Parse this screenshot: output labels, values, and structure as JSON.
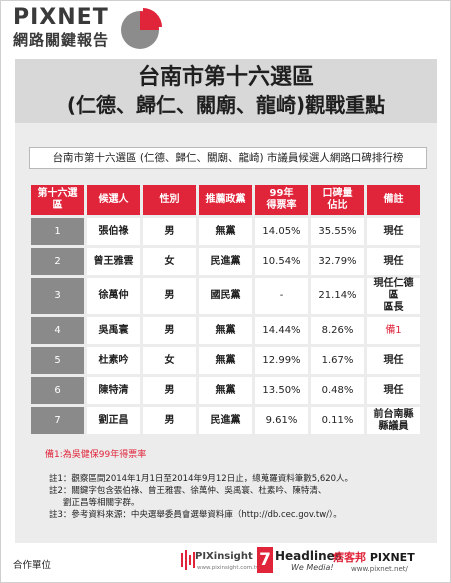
{
  "brand": {
    "name": "PIXNET",
    "subtitle": "網路關鍵報告"
  },
  "title": {
    "line1": "台南市第十六選區",
    "line2": "(仁德、歸仁、關廟、龍崎)觀戰重點"
  },
  "table_caption": "台南市第十六選區 (仁德、歸仁、關廟、龍崎) 市議員候選人網路口碑排行榜",
  "table": {
    "headers": [
      "第十六選區",
      "候選人",
      "性別",
      "推薦政黨",
      "99年\n得票率",
      "口碑量\n佔比",
      "備註"
    ],
    "rows": [
      {
        "rank": "1",
        "name": "張伯祿",
        "gender": "男",
        "party": "無黨",
        "rate": "14.05%",
        "share": "35.55%",
        "note": "現任"
      },
      {
        "rank": "2",
        "name": "曾王雅雲",
        "gender": "女",
        "party": "民進黨",
        "rate": "10.54%",
        "share": "32.79%",
        "note": "現任"
      },
      {
        "rank": "3",
        "name": "徐萬仲",
        "gender": "男",
        "party": "國民黨",
        "rate": "-",
        "share": "21.14%",
        "note": "現任仁德區\n區長"
      },
      {
        "rank": "4",
        "name": "吳禹寰",
        "gender": "男",
        "party": "無黨",
        "rate": "14.44%",
        "share": "8.26%",
        "note": "備1"
      },
      {
        "rank": "5",
        "name": "杜素吟",
        "gender": "女",
        "party": "無黨",
        "rate": "12.99%",
        "share": "1.67%",
        "note": "現任"
      },
      {
        "rank": "6",
        "name": "陳特清",
        "gender": "男",
        "party": "無黨",
        "rate": "13.50%",
        "share": "0.48%",
        "note": "現任"
      },
      {
        "rank": "7",
        "name": "劉正昌",
        "gender": "男",
        "party": "民進黨",
        "rate": "9.61%",
        "share": "0.11%",
        "note": "前台南縣\n縣議員"
      }
    ]
  },
  "footnote": "備1:為吳健保99年得票率",
  "notes": {
    "n1": "註1：觀察區間2014年1月1日至2014年9月12日止，總蒐羅資料筆數5,620人。",
    "n2": "註2：關鍵字包含張伯祿、曾王雅雲、徐萬仲、吳禹寰、杜素吟、陳特清、",
    "n2b": "劉正昌等相關字群。",
    "n3": "註3：參考資料來源：中央選舉委員會選舉資料庫（http://db.cec.gov.tw/）。"
  },
  "footer": {
    "coop_label": "合作單位",
    "pix_insight": "PIXinsight",
    "pix_insight_url": "www.pixinsight.com.tw",
    "headlines_num": "7",
    "headlines": "Headlines",
    "headlines_tag": "We Media!",
    "pixnet_cn": "痞客邦",
    "pixnet": "PIXNET",
    "pixnet_url": "www.pixnet.net/"
  },
  "colors": {
    "accent_red": "#e0243a",
    "rank_gray": "#8a8a8a",
    "panel_gray": "#ececec"
  }
}
